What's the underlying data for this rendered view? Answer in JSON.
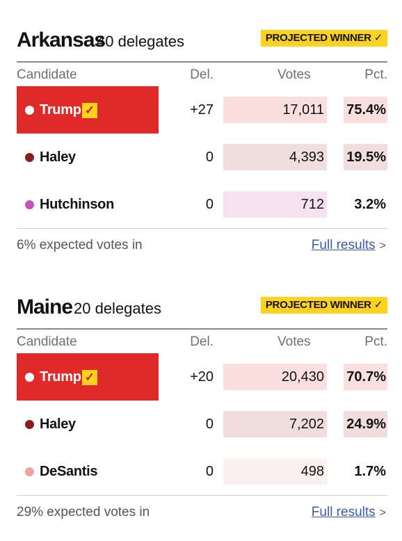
{
  "states": [
    {
      "name": "Arkansas",
      "delegates_label": "40 delegates",
      "badge": "PROJECTED WINNER",
      "headers": {
        "candidate": "Candidate",
        "del": "Del.",
        "votes": "Votes",
        "pct": "Pct."
      },
      "rows": [
        {
          "name": "Trump",
          "del": "+27",
          "votes": "17,011",
          "pct": "75.4%",
          "winner": true,
          "dot_color": "#ffffff",
          "vote_bg": "#fbdede",
          "pct_bg": "#fbdede"
        },
        {
          "name": "Haley",
          "del": "0",
          "votes": "4,393",
          "pct": "19.5%",
          "winner": false,
          "dot_color": "#8b1c1c",
          "vote_bg": "#f0dede",
          "pct_bg": "#f0dede"
        },
        {
          "name": "Hutchinson",
          "del": "0",
          "votes": "712",
          "pct": "3.2%",
          "winner": false,
          "dot_color": "#c354b8",
          "vote_bg": "#f4e2f1",
          "pct_bg": "#ffffff"
        }
      ],
      "expected": "6% expected votes in",
      "link": "Full results"
    },
    {
      "name": "Maine",
      "delegates_label": "20 delegates",
      "badge": "PROJECTED WINNER",
      "headers": {
        "candidate": "Candidate",
        "del": "Del.",
        "votes": "Votes",
        "pct": "Pct."
      },
      "rows": [
        {
          "name": "Trump",
          "del": "+20",
          "votes": "20,430",
          "pct": "70.7%",
          "winner": true,
          "dot_color": "#ffffff",
          "vote_bg": "#fbdede",
          "pct_bg": "#fbdede"
        },
        {
          "name": "Haley",
          "del": "0",
          "votes": "7,202",
          "pct": "24.9%",
          "winner": false,
          "dot_color": "#8b1c1c",
          "vote_bg": "#f0dede",
          "pct_bg": "#f0dede"
        },
        {
          "name": "DeSantis",
          "del": "0",
          "votes": "498",
          "pct": "1.7%",
          "winner": false,
          "dot_color": "#f2a3a3",
          "vote_bg": "#fdf0f0",
          "pct_bg": "#ffffff"
        }
      ],
      "expected": "29% expected votes in",
      "link": "Full results"
    }
  ],
  "colors": {
    "winner_red": "#e02a2a",
    "badge_yellow": "#ffd21f",
    "link_blue": "#3b5ba8"
  },
  "icons": {
    "winner_check": "check-icon",
    "link_chevron": "chevron-right-icon"
  }
}
